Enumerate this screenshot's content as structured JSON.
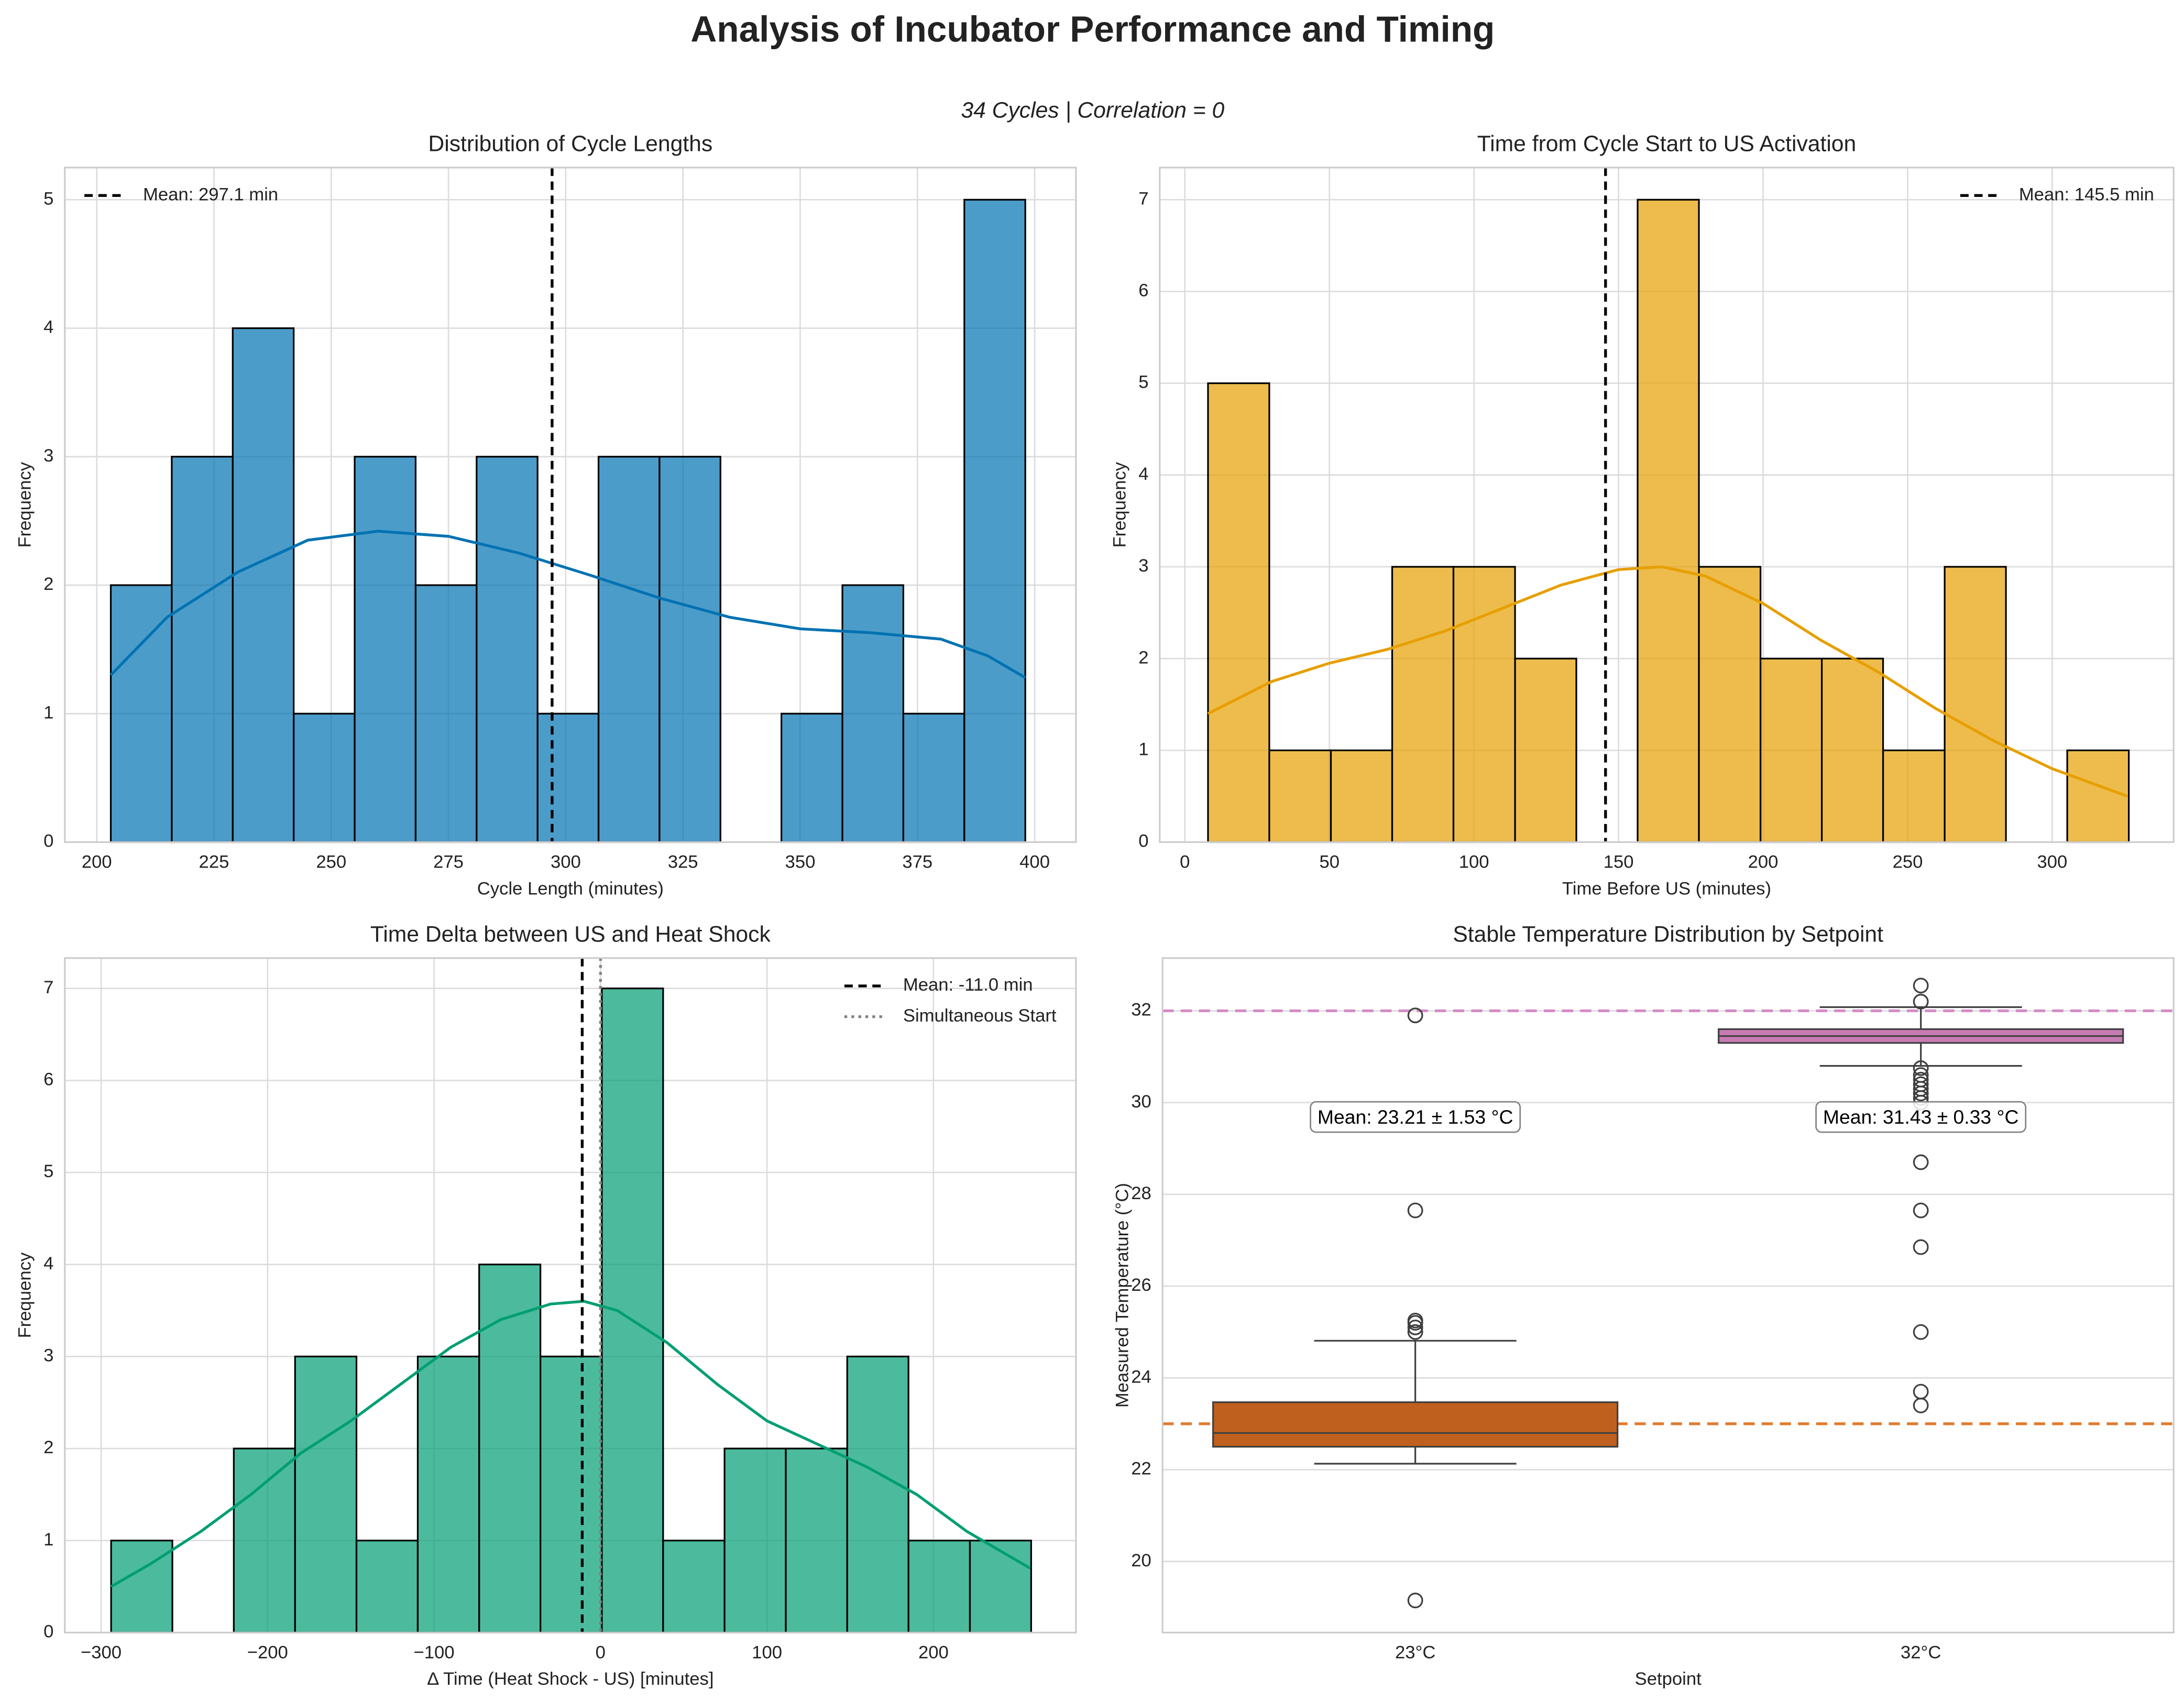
{
  "title": "Analysis of Incubator Performance and Timing",
  "subtitle": "34 Cycles | Correlation = 0",
  "chart_data": [
    {
      "type": "histogram",
      "title": "Distribution of Cycle Lengths",
      "xlabel": "Cycle Length (minutes)",
      "ylabel": "Frequency",
      "bins": [
        203,
        216,
        229,
        242,
        255,
        268,
        281,
        294,
        307,
        320,
        333,
        346,
        359,
        372,
        385,
        398
      ],
      "values": [
        2,
        3,
        4,
        1,
        3,
        2,
        3,
        1,
        3,
        3,
        0,
        1,
        2,
        1,
        5
      ],
      "color": "#0072B2",
      "kde_x": [
        203,
        215,
        230,
        245,
        260,
        275,
        290,
        305,
        320,
        335,
        350,
        365,
        380,
        390,
        398
      ],
      "kde_values": [
        1.3,
        1.75,
        2.1,
        2.35,
        2.42,
        2.38,
        2.25,
        2.08,
        1.9,
        1.75,
        1.66,
        1.63,
        1.58,
        1.45,
        1.28
      ],
      "lines": [
        {
          "name": "Mean: 297.1 min",
          "value": 297.1,
          "color": "#000000",
          "style": "dashed"
        }
      ],
      "legend": "upper left",
      "xlim": [
        193.2,
        408.8
      ],
      "xticks": [
        200,
        225,
        250,
        275,
        300,
        325,
        350,
        375,
        400
      ],
      "ylim": [
        0,
        5.25
      ],
      "yticks": [
        0,
        1,
        2,
        3,
        4,
        5
      ],
      "grid": true
    },
    {
      "type": "histogram",
      "title": "Time from Cycle Start to US Activation",
      "xlabel": "Time Before US (minutes)",
      "ylabel": "Frequency",
      "bins": [
        8,
        29.2,
        50.5,
        71.7,
        92.9,
        114.2,
        135.4,
        156.6,
        177.8,
        199.1,
        220.3,
        241.5,
        262.8,
        284,
        305.2,
        326.5
      ],
      "values": [
        5,
        1,
        1,
        3,
        3,
        2,
        0,
        7,
        3,
        2,
        2,
        1,
        3,
        0,
        1
      ],
      "color": "#E69F00",
      "kde_x": [
        8,
        30,
        50,
        70,
        90,
        110,
        130,
        150,
        165,
        180,
        200,
        220,
        240,
        260,
        280,
        300,
        326
      ],
      "kde_values": [
        1.4,
        1.75,
        1.95,
        2.1,
        2.3,
        2.55,
        2.8,
        2.97,
        3.0,
        2.9,
        2.6,
        2.2,
        1.85,
        1.45,
        1.1,
        0.8,
        0.5
      ],
      "lines": [
        {
          "name": "Mean: 145.5 min",
          "value": 145.5,
          "color": "#000000",
          "style": "dashed"
        }
      ],
      "legend": "upper right",
      "xlim": [
        -8.7,
        342
      ],
      "xticks": [
        0,
        50,
        100,
        150,
        200,
        250,
        300
      ],
      "ylim": [
        0,
        7.35
      ],
      "yticks": [
        0,
        1,
        2,
        3,
        4,
        5,
        6,
        7
      ],
      "grid": true
    },
    {
      "type": "histogram",
      "title": "Time Delta between US and Heat Shock",
      "xlabel": "Δ Time (Heat Shock - US) [minutes]",
      "ylabel": "Frequency",
      "bins": [
        -294,
        -257.2,
        -220.3,
        -183.5,
        -146.6,
        -109.8,
        -72.9,
        -36.1,
        0.8,
        37.6,
        74.5,
        111.3,
        148.2,
        185,
        221.9,
        258.7
      ],
      "values": [
        1,
        0,
        2,
        3,
        1,
        3,
        4,
        3,
        7,
        1,
        2,
        2,
        3,
        1,
        1
      ],
      "color": "#009E73",
      "kde_x": [
        -294,
        -270,
        -240,
        -210,
        -180,
        -150,
        -120,
        -90,
        -60,
        -30,
        -10,
        10,
        40,
        70,
        100,
        130,
        160,
        190,
        220,
        258
      ],
      "kde_values": [
        0.5,
        0.75,
        1.1,
        1.5,
        1.95,
        2.3,
        2.7,
        3.1,
        3.4,
        3.57,
        3.6,
        3.5,
        3.15,
        2.7,
        2.3,
        2.05,
        1.8,
        1.5,
        1.1,
        0.7
      ],
      "lines": [
        {
          "name": "Mean: -11.0 min",
          "value": -11.0,
          "color": "#000000",
          "style": "dashed"
        },
        {
          "name": "Simultaneous Start",
          "value": 0,
          "color": "#808080",
          "style": "dotted"
        }
      ],
      "legend": "upper right",
      "xlim": [
        -321.8,
        285.6
      ],
      "xticks": [
        {
          "value": -300,
          "label": "−300"
        },
        {
          "value": -200,
          "label": "−200"
        },
        {
          "value": -100,
          "label": "−100"
        },
        0,
        100,
        200
      ],
      "ylim": [
        0,
        7.33
      ],
      "yticks": [
        0,
        1,
        2,
        3,
        4,
        5,
        6,
        7
      ],
      "grid": true
    },
    {
      "type": "box",
      "title": "Stable Temperature Distribution by Setpoint",
      "xlabel": "Setpoint",
      "ylabel": "Measured Temperature (°C)",
      "categories": [
        "23°C",
        "32°C"
      ],
      "boxes": [
        {
          "whislo": 22.13,
          "q1": 22.5,
          "med": 22.8,
          "q3": 23.47,
          "whishi": 24.81,
          "color": "#c0601e",
          "fliers": [
            25.0,
            25.1,
            25.2,
            25.25,
            27.65,
            31.9,
            19.15
          ]
        },
        {
          "whislo": 30.8,
          "q1": 31.3,
          "med": 31.45,
          "q3": 31.6,
          "whishi": 32.08,
          "color": "#c77bb3",
          "fliers": [
            32.2,
            32.55,
            30.75,
            30.6,
            30.5,
            30.4,
            30.3,
            30.2,
            30.1,
            30.0,
            28.7,
            27.65,
            26.85,
            25.0,
            23.7,
            23.4
          ]
        }
      ],
      "hlines": [
        {
          "value": 32,
          "color": "#d48cc6"
        },
        {
          "value": 23,
          "color": "#e07b2f"
        }
      ],
      "annotations": [
        "Mean: 23.21 ± 1.53 °C",
        "Mean: 31.43 ± 0.33 °C"
      ],
      "ylim": [
        18.45,
        33.15
      ],
      "yticks": [
        20,
        22,
        24,
        26,
        28,
        30,
        32
      ],
      "grid": true
    }
  ]
}
